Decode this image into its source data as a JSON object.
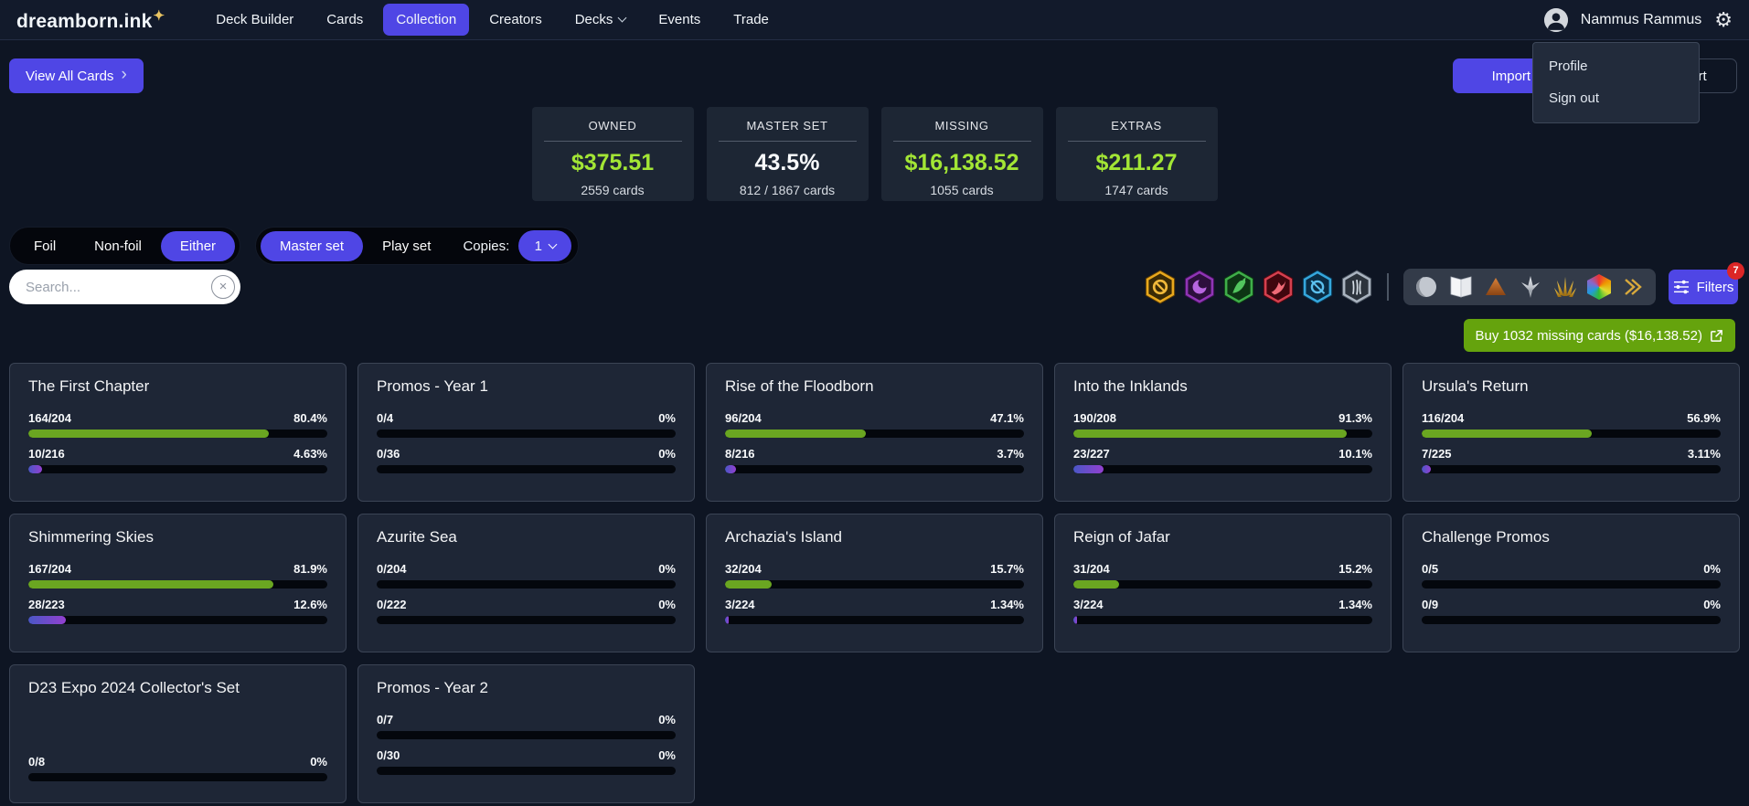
{
  "nav": {
    "logo": "dreamborn.ink",
    "sparkle": "✦",
    "items": [
      {
        "label": "Deck Builder"
      },
      {
        "label": "Cards"
      },
      {
        "label": "Collection"
      },
      {
        "label": "Creators"
      },
      {
        "label": "Decks"
      },
      {
        "label": "Events"
      },
      {
        "label": "Trade"
      }
    ],
    "user_name": "Nammus Rammus"
  },
  "menu": {
    "profile": "Profile",
    "sign_out": "Sign out"
  },
  "toolbar": {
    "view_all": "View All Cards",
    "view_all_chevron": "›",
    "import": "Import Deck",
    "export": "Export"
  },
  "stats": [
    {
      "label": "OWNED",
      "value": "$375.51",
      "sub": "2559 cards"
    },
    {
      "label": "MASTER SET",
      "value": "43.5%",
      "sub": "812 / 1867 cards"
    },
    {
      "label": "MISSING",
      "value": "$16,138.52",
      "sub": "1055 cards"
    },
    {
      "label": "EXTRAS",
      "value": "$211.27",
      "sub": "1747 cards"
    }
  ],
  "filters": {
    "foil": "Foil",
    "nonfoil": "Non-foil",
    "either": "Either",
    "master_set": "Master set",
    "play_set": "Play set",
    "copies_label": "Copies:",
    "copies_value": "1"
  },
  "search": {
    "placeholder": "Search...",
    "clear": "×"
  },
  "icons": {
    "inks": [
      "amber-ink-icon",
      "amethyst-ink-icon",
      "emerald-ink-icon",
      "ruby-ink-icon",
      "sapphire-ink-icon",
      "steel-ink-icon"
    ],
    "rarities": [
      "common-rarity-icon",
      "uncommon-rarity-icon",
      "rare-rarity-icon",
      "super-rare-rarity-icon",
      "legendary-rarity-icon",
      "enchanted-rarity-icon",
      "special-rarity-icon"
    ]
  },
  "filters_button": {
    "label": "Filters",
    "badge": "7"
  },
  "buy": {
    "label": "Buy 1032 missing cards ($16,138.52)"
  },
  "colors": {
    "accent_purple": "#4f46e5",
    "money_green": "#a3e635",
    "bar_green": "#6aa621",
    "bar_purple": "#9340d0",
    "buy_green": "#65a30d",
    "badge_red": "#dc2626"
  },
  "sets": [
    {
      "title": "The First Chapter",
      "bars": [
        {
          "count": "164/204",
          "pct": "80.4%",
          "fill": 80.4
        },
        {
          "count": "10/216",
          "pct": "4.63%",
          "fill": 4.63
        }
      ]
    },
    {
      "title": "Promos - Year 1",
      "bars": [
        {
          "count": "0/4",
          "pct": "0%",
          "fill": 0
        },
        {
          "count": "0/36",
          "pct": "0%",
          "fill": 0
        }
      ]
    },
    {
      "title": "Rise of the Floodborn",
      "bars": [
        {
          "count": "96/204",
          "pct": "47.1%",
          "fill": 47.1
        },
        {
          "count": "8/216",
          "pct": "3.7%",
          "fill": 3.7
        }
      ]
    },
    {
      "title": "Into the Inklands",
      "bars": [
        {
          "count": "190/208",
          "pct": "91.3%",
          "fill": 91.3
        },
        {
          "count": "23/227",
          "pct": "10.1%",
          "fill": 10.1
        }
      ]
    },
    {
      "title": "Ursula's Return",
      "bars": [
        {
          "count": "116/204",
          "pct": "56.9%",
          "fill": 56.9
        },
        {
          "count": "7/225",
          "pct": "3.11%",
          "fill": 3.11
        }
      ]
    },
    {
      "title": "Shimmering Skies",
      "bars": [
        {
          "count": "167/204",
          "pct": "81.9%",
          "fill": 81.9
        },
        {
          "count": "28/223",
          "pct": "12.6%",
          "fill": 12.6
        }
      ]
    },
    {
      "title": "Azurite Sea",
      "bars": [
        {
          "count": "0/204",
          "pct": "0%",
          "fill": 0
        },
        {
          "count": "0/222",
          "pct": "0%",
          "fill": 0
        }
      ]
    },
    {
      "title": "Archazia's Island",
      "bars": [
        {
          "count": "32/204",
          "pct": "15.7%",
          "fill": 15.7
        },
        {
          "count": "3/224",
          "pct": "1.34%",
          "fill": 1.34
        }
      ]
    },
    {
      "title": "Reign of Jafar",
      "bars": [
        {
          "count": "31/204",
          "pct": "15.2%",
          "fill": 15.2
        },
        {
          "count": "3/224",
          "pct": "1.34%",
          "fill": 1.34
        }
      ]
    },
    {
      "title": "Challenge Promos",
      "bars": [
        {
          "count": "0/5",
          "pct": "0%",
          "fill": 0
        },
        {
          "count": "0/9",
          "pct": "0%",
          "fill": 0
        }
      ]
    },
    {
      "title": "D23 Expo 2024 Collector's Set",
      "bars": [
        {
          "count": "0/8",
          "pct": "0%",
          "fill": 0
        }
      ]
    },
    {
      "title": "Promos - Year 2",
      "bars": [
        {
          "count": "0/7",
          "pct": "0%",
          "fill": 0
        },
        {
          "count": "0/30",
          "pct": "0%",
          "fill": 0
        }
      ]
    }
  ]
}
